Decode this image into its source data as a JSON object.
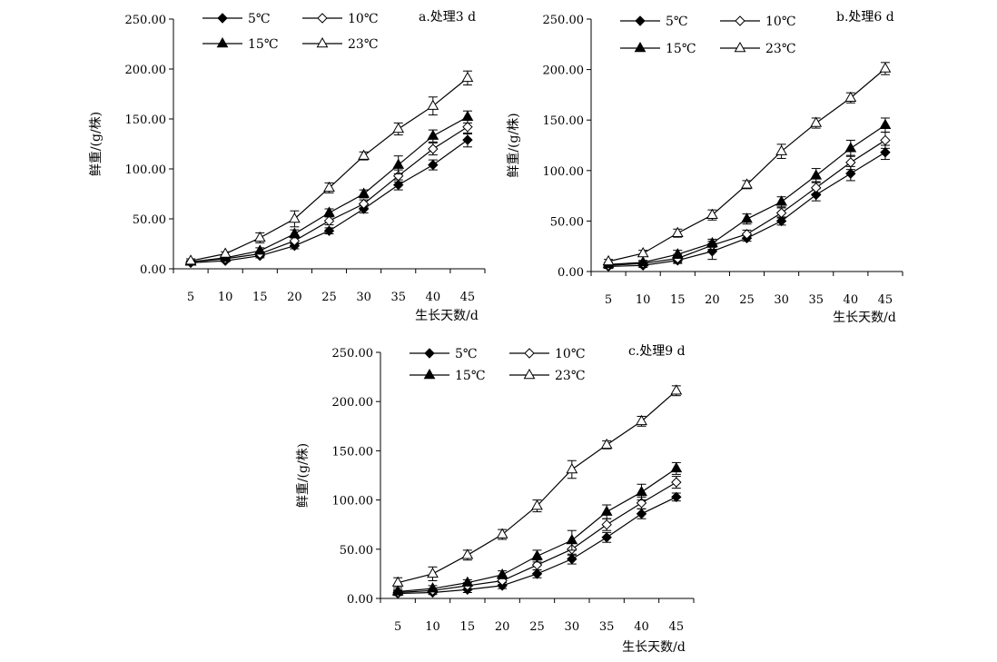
{
  "chart_data": [
    {
      "type": "line",
      "title": "a.处理3 d",
      "xlabel": "生长天数/d",
      "ylabel": "鲜重/(g/株)",
      "x": [
        5,
        10,
        15,
        20,
        25,
        30,
        35,
        40,
        45
      ],
      "x_tick_labels": [
        "5",
        "10",
        "15",
        "20",
        "25",
        "30",
        "35",
        "40",
        "45"
      ],
      "ylim": [
        0,
        250
      ],
      "y_tick_labels": [
        "0.00",
        "50.00",
        "100.00",
        "150.00",
        "200.00",
        "250.00"
      ],
      "error_bars": true,
      "legend_position": "top-left",
      "series": [
        {
          "name": "5℃",
          "marker": "filled-diamond",
          "values": [
            6,
            8,
            13,
            23,
            38,
            60,
            84,
            104,
            129
          ],
          "errors": [
            1,
            1,
            2,
            3,
            3,
            4,
            5,
            5,
            7
          ]
        },
        {
          "name": "10℃",
          "marker": "open-diamond",
          "values": [
            7,
            10,
            15,
            28,
            48,
            65,
            93,
            120,
            142
          ],
          "errors": [
            1,
            1,
            2,
            3,
            4,
            4,
            6,
            6,
            7
          ]
        },
        {
          "name": "15℃",
          "marker": "filled-triangle",
          "values": [
            7,
            11,
            18,
            35,
            56,
            75,
            104,
            133,
            152
          ],
          "errors": [
            1,
            1,
            3,
            4,
            4,
            4,
            9,
            6,
            6
          ]
        },
        {
          "name": "23℃",
          "marker": "open-triangle",
          "values": [
            8,
            15,
            31,
            50,
            81,
            113,
            140,
            163,
            191
          ],
          "errors": [
            2,
            2,
            5,
            8,
            5,
            4,
            6,
            9,
            7
          ]
        }
      ]
    },
    {
      "type": "line",
      "title": "b.处理6 d",
      "xlabel": "生长天数/d",
      "ylabel": "鲜重/(g/株)",
      "x": [
        5,
        10,
        15,
        20,
        25,
        30,
        35,
        40,
        45
      ],
      "x_tick_labels": [
        "5",
        "10",
        "15",
        "20",
        "25",
        "30",
        "35",
        "40",
        "45"
      ],
      "ylim": [
        0,
        250
      ],
      "y_tick_labels": [
        "0.00",
        "50.00",
        "100.00",
        "150.00",
        "200.00",
        "250.00"
      ],
      "error_bars": true,
      "legend_position": "top-left",
      "series": [
        {
          "name": "5℃",
          "marker": "filled-diamond",
          "values": [
            5,
            6,
            11,
            20,
            33,
            50,
            76,
            97,
            118
          ],
          "errors": [
            2,
            2,
            3,
            8,
            3,
            4,
            6,
            7,
            7
          ]
        },
        {
          "name": "10℃",
          "marker": "open-diamond",
          "values": [
            6,
            8,
            13,
            26,
            37,
            58,
            83,
            108,
            130
          ],
          "errors": [
            2,
            2,
            4,
            4,
            4,
            5,
            6,
            7,
            8
          ]
        },
        {
          "name": "15℃",
          "marker": "filled-triangle",
          "values": [
            7,
            9,
            17,
            28,
            52,
            69,
            95,
            122,
            145
          ],
          "errors": [
            2,
            2,
            4,
            4,
            5,
            5,
            7,
            8,
            7
          ]
        },
        {
          "name": "23℃",
          "marker": "open-triangle",
          "values": [
            10,
            18,
            38,
            56,
            86,
            119,
            147,
            172,
            201
          ],
          "errors": [
            2,
            3,
            4,
            5,
            4,
            7,
            5,
            5,
            6
          ]
        }
      ]
    },
    {
      "type": "line",
      "title": "c.处理9 d",
      "xlabel": "生长天数/d",
      "ylabel": "鲜重/(g/株)",
      "x": [
        5,
        10,
        15,
        20,
        25,
        30,
        35,
        40,
        45
      ],
      "x_tick_labels": [
        "5",
        "10",
        "15",
        "20",
        "25",
        "30",
        "35",
        "40",
        "45"
      ],
      "ylim": [
        0,
        250
      ],
      "y_tick_labels": [
        "0.00",
        "50.00",
        "100.00",
        "150.00",
        "200.00",
        "250.00"
      ],
      "error_bars": true,
      "legend_position": "top-left",
      "series": [
        {
          "name": "5℃",
          "marker": "filled-diamond",
          "values": [
            5,
            6,
            9,
            13,
            25,
            40,
            62,
            86,
            103
          ],
          "errors": [
            2,
            2,
            3,
            3,
            4,
            5,
            5,
            5,
            4
          ]
        },
        {
          "name": "10℃",
          "marker": "open-diamond",
          "values": [
            6,
            8,
            13,
            18,
            34,
            50,
            75,
            97,
            118
          ],
          "errors": [
            2,
            2,
            3,
            4,
            5,
            6,
            6,
            6,
            6
          ]
        },
        {
          "name": "15℃",
          "marker": "filled-triangle",
          "values": [
            7,
            10,
            16,
            24,
            43,
            59,
            88,
            108,
            132
          ],
          "errors": [
            2,
            3,
            3,
            4,
            6,
            10,
            7,
            8,
            6
          ]
        },
        {
          "name": "23℃",
          "marker": "open-triangle",
          "values": [
            16,
            25,
            44,
            65,
            94,
            131,
            156,
            180,
            211
          ],
          "errors": [
            5,
            7,
            5,
            5,
            6,
            9,
            4,
            5,
            5
          ]
        }
      ]
    }
  ]
}
